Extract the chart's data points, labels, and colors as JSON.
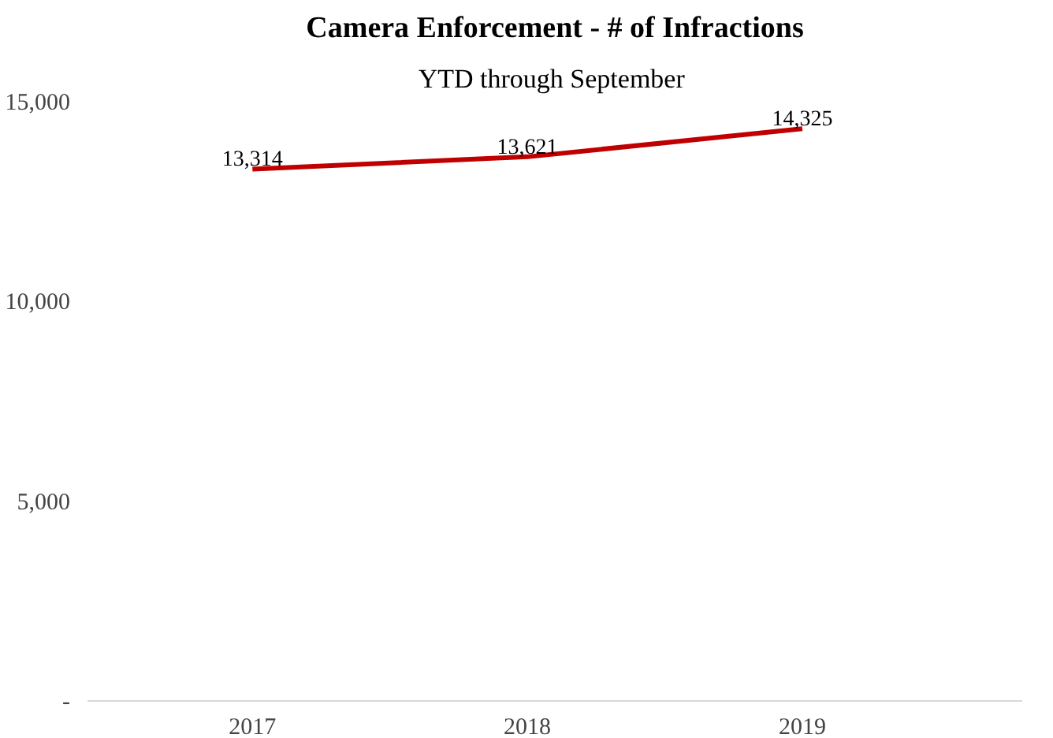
{
  "chart_data": {
    "type": "line",
    "title": "Camera Enforcement - # of Infractions",
    "subtitle": "YTD through  September",
    "categories": [
      "2017",
      "2018",
      "2019"
    ],
    "series": [
      {
        "color": "#c00000",
        "values": [
          13314,
          13621,
          14325
        ],
        "value_labels": [
          "13,314",
          "13,621",
          "14,325"
        ]
      }
    ],
    "ylim": [
      0,
      15000
    ],
    "yticks": [
      {
        "value": 0,
        "label": "-"
      },
      {
        "value": 5000,
        "label": "5,000"
      },
      {
        "value": 10000,
        "label": "10,000"
      },
      {
        "value": 15000,
        "label": "15,000"
      }
    ],
    "grid": false,
    "marker": "none",
    "line_style": "solid"
  }
}
